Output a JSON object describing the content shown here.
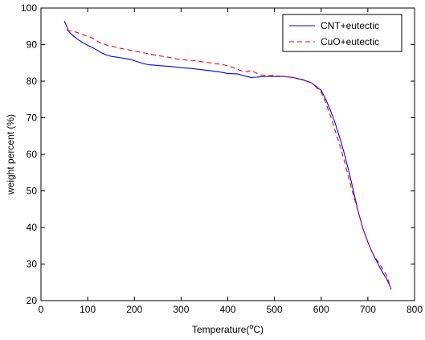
{
  "chart_data": {
    "type": "line",
    "xlabel": "Temperature(",
    "xlabel_sup": "o",
    "xlabel_tail": "C)",
    "ylabel": "weight percent (%)",
    "xlim": [
      0,
      800
    ],
    "ylim": [
      20,
      100
    ],
    "xticks": [
      0,
      100,
      200,
      300,
      400,
      500,
      600,
      700,
      800
    ],
    "yticks": [
      20,
      30,
      40,
      50,
      60,
      70,
      80,
      90,
      100
    ],
    "grid": false,
    "legend_position": "top-right",
    "series": [
      {
        "name": "CNT+eutectic",
        "color": "#0000ff",
        "dash": "solid",
        "x": [
          50,
          55,
          60,
          70,
          80,
          90,
          100,
          110,
          120,
          130,
          140,
          150,
          160,
          170,
          180,
          190,
          200,
          210,
          220,
          230,
          240,
          260,
          280,
          300,
          320,
          340,
          360,
          380,
          400,
          420,
          440,
          450,
          460,
          470,
          480,
          500,
          520,
          540,
          560,
          580,
          600,
          610,
          620,
          630,
          640,
          650,
          660,
          670,
          680,
          690,
          700,
          710,
          720,
          730,
          740,
          750
        ],
        "y": [
          96.5,
          95,
          93.5,
          92.3,
          91.3,
          90.5,
          89.8,
          89.2,
          88.5,
          87.7,
          87.2,
          86.8,
          86.6,
          86.4,
          86.2,
          86.0,
          85.6,
          85.2,
          84.8,
          84.5,
          84.4,
          84.2,
          84.0,
          83.7,
          83.5,
          83.2,
          82.9,
          82.6,
          82.1,
          82.0,
          81.3,
          81.0,
          81.1,
          81.2,
          81.3,
          81.3,
          81.3,
          81.0,
          80.4,
          79.5,
          77.5,
          75.0,
          72.0,
          68.5,
          64.5,
          60.0,
          55.0,
          49.5,
          44.0,
          39.5,
          36.0,
          33.0,
          30.5,
          28.0,
          26.0,
          23.2
        ]
      },
      {
        "name": "CuO+eutectic",
        "color": "#ff0000",
        "dash": "dashed",
        "x": [
          55,
          60,
          70,
          80,
          90,
          100,
          110,
          120,
          130,
          140,
          150,
          170,
          190,
          210,
          230,
          250,
          270,
          290,
          310,
          330,
          350,
          370,
          390,
          400,
          410,
          420,
          430,
          440,
          450,
          460,
          470,
          480,
          500,
          520,
          540,
          560,
          580,
          600,
          610,
          620,
          630,
          640,
          650,
          660,
          670,
          680,
          690,
          700,
          710,
          720,
          730,
          740,
          750
        ],
        "y": [
          94.0,
          93.8,
          93.6,
          93.2,
          92.7,
          92.3,
          91.8,
          91.0,
          90.3,
          89.9,
          89.6,
          89.0,
          88.5,
          88.0,
          87.5,
          87.0,
          86.6,
          86.1,
          85.8,
          85.6,
          85.2,
          84.9,
          84.5,
          84.2,
          83.8,
          83.3,
          82.8,
          82.6,
          82.9,
          82.3,
          81.7,
          81.6,
          81.5,
          81.3,
          81.0,
          80.5,
          79.5,
          77.0,
          74.0,
          70.5,
          66.5,
          62.5,
          58.0,
          53.0,
          48.5,
          44.0,
          39.5,
          36.0,
          33.0,
          31.0,
          29.0,
          27.0,
          23.0
        ]
      }
    ]
  }
}
